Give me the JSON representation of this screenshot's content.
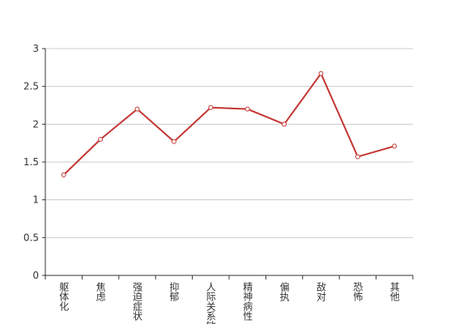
{
  "chart_data": {
    "type": "line",
    "categories": [
      "躯体化",
      "焦虑",
      "强迫症状",
      "抑郁",
      "人际关系敏感",
      "精神病性",
      "偏执",
      "敌对",
      "恐怖",
      "其他"
    ],
    "values": [
      1.33,
      1.8,
      2.2,
      1.77,
      2.22,
      2.2,
      2.0,
      2.67,
      1.57,
      1.71
    ],
    "color": "#c23531",
    "ylim": [
      0,
      3
    ],
    "yticks": [
      0,
      {
        "value": 0.5,
        "label": "0.5"
      },
      1,
      {
        "value": 1.5,
        "label": "1.5"
      },
      2,
      {
        "value": 2.5,
        "label": "2.5"
      },
      3
    ],
    "grid": true
  }
}
